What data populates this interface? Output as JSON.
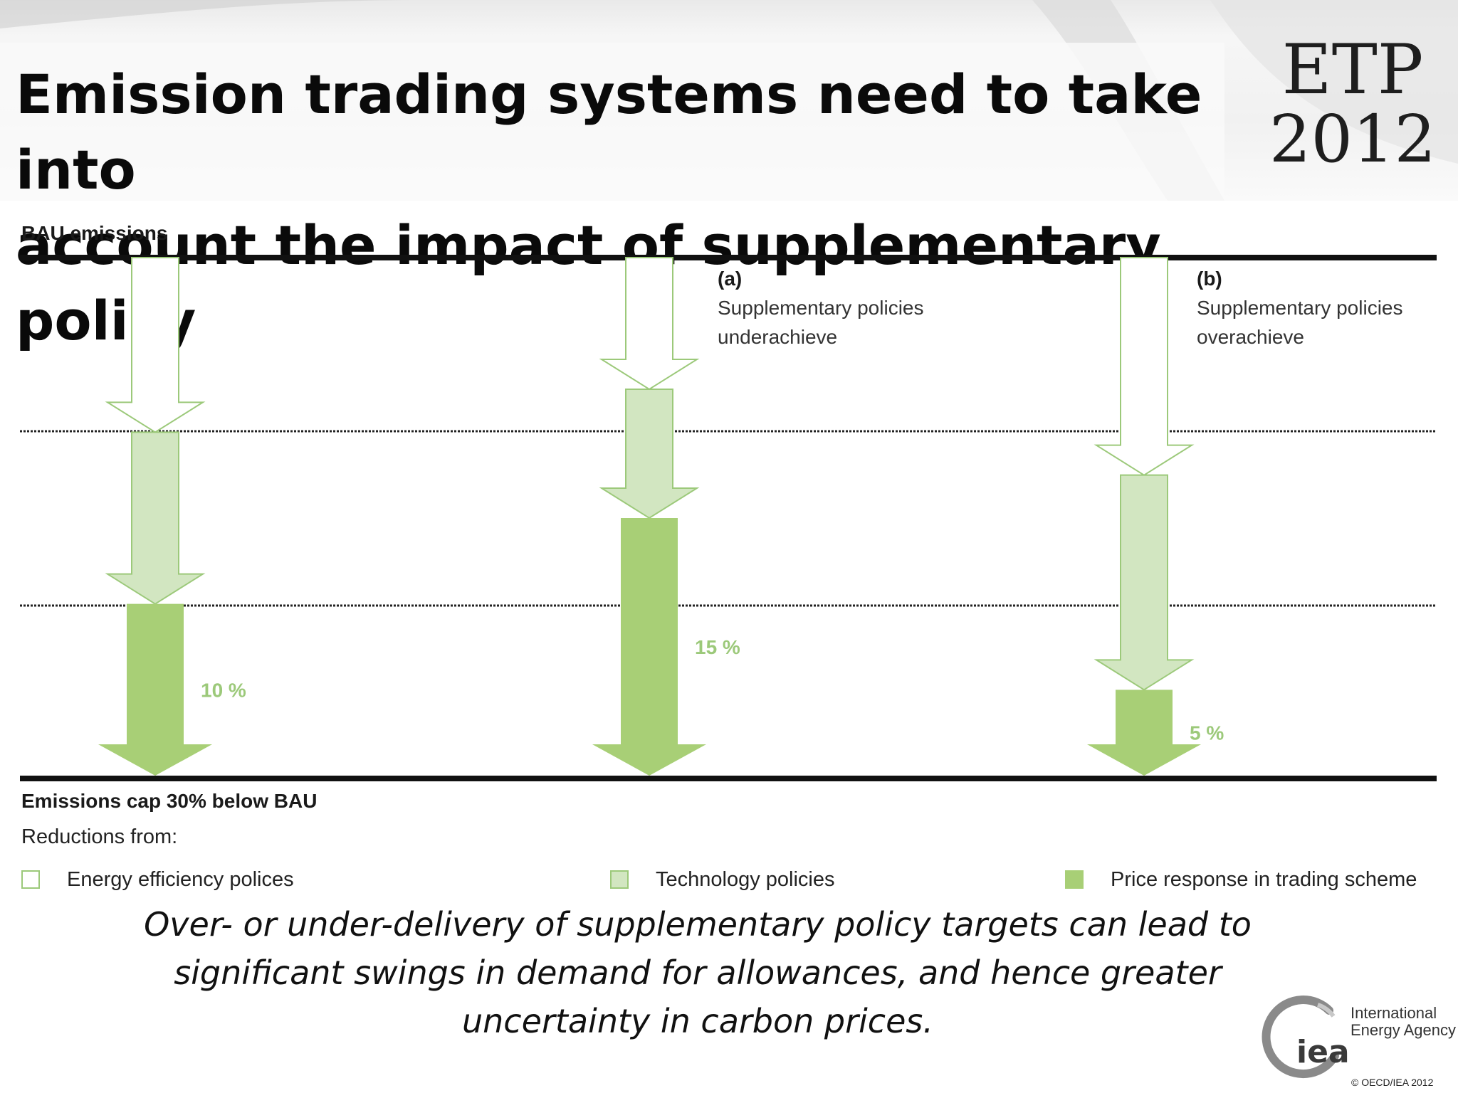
{
  "slide": {
    "title_line1": "Emission trading systems need to take into",
    "title_line2": "account the impact of supplementary policy",
    "badge_line1": "ETP",
    "badge_line2": "2012"
  },
  "diagram": {
    "top_line_label": "BAU emissions",
    "bottom_line_label": "Emissions cap 30% below BAU",
    "scenario_a": {
      "tag": "(a)",
      "line1": "Supplementary policies",
      "line2": "underachieve"
    },
    "scenario_b": {
      "tag": "(b)",
      "line1": "Supplementary policies",
      "line2": "overachieve"
    },
    "columns": [
      {
        "price_response_label": "10 %",
        "energy_efficiency": 10,
        "technology": 10,
        "price_response": 10
      },
      {
        "price_response_label": "15 %",
        "energy_efficiency": 7.5,
        "technology": 7.5,
        "price_response": 15
      },
      {
        "price_response_label": "5 %",
        "energy_efficiency": 12.5,
        "technology": 12.5,
        "price_response": 5
      }
    ]
  },
  "legend": {
    "title": "Reductions from:",
    "items": [
      {
        "label": "Energy efficiency polices",
        "color": "#ffffff",
        "border": "#9cc97a"
      },
      {
        "label": "Technology policies",
        "color": "#d2e6c1",
        "border": "#9cc97a"
      },
      {
        "label": "Price response in trading scheme",
        "color": "#a8cf76",
        "border": "#a8cf76"
      }
    ]
  },
  "caption": {
    "line1": "Over- or under-delivery of supplementary policy targets can lead to",
    "line2": "significant swings in demand for allowances, and hence greater",
    "line3": "uncertainty in carbon prices."
  },
  "footer": {
    "logo_mark": "iea",
    "org_line1": "International",
    "org_line2": "Energy Agency",
    "copyright": "© OECD/IEA 2012"
  },
  "colors": {
    "outline_green": "#9cc97a",
    "light_green": "#d2e6c1",
    "mid_green": "#a8cf76",
    "label_green": "#9cc97a"
  }
}
